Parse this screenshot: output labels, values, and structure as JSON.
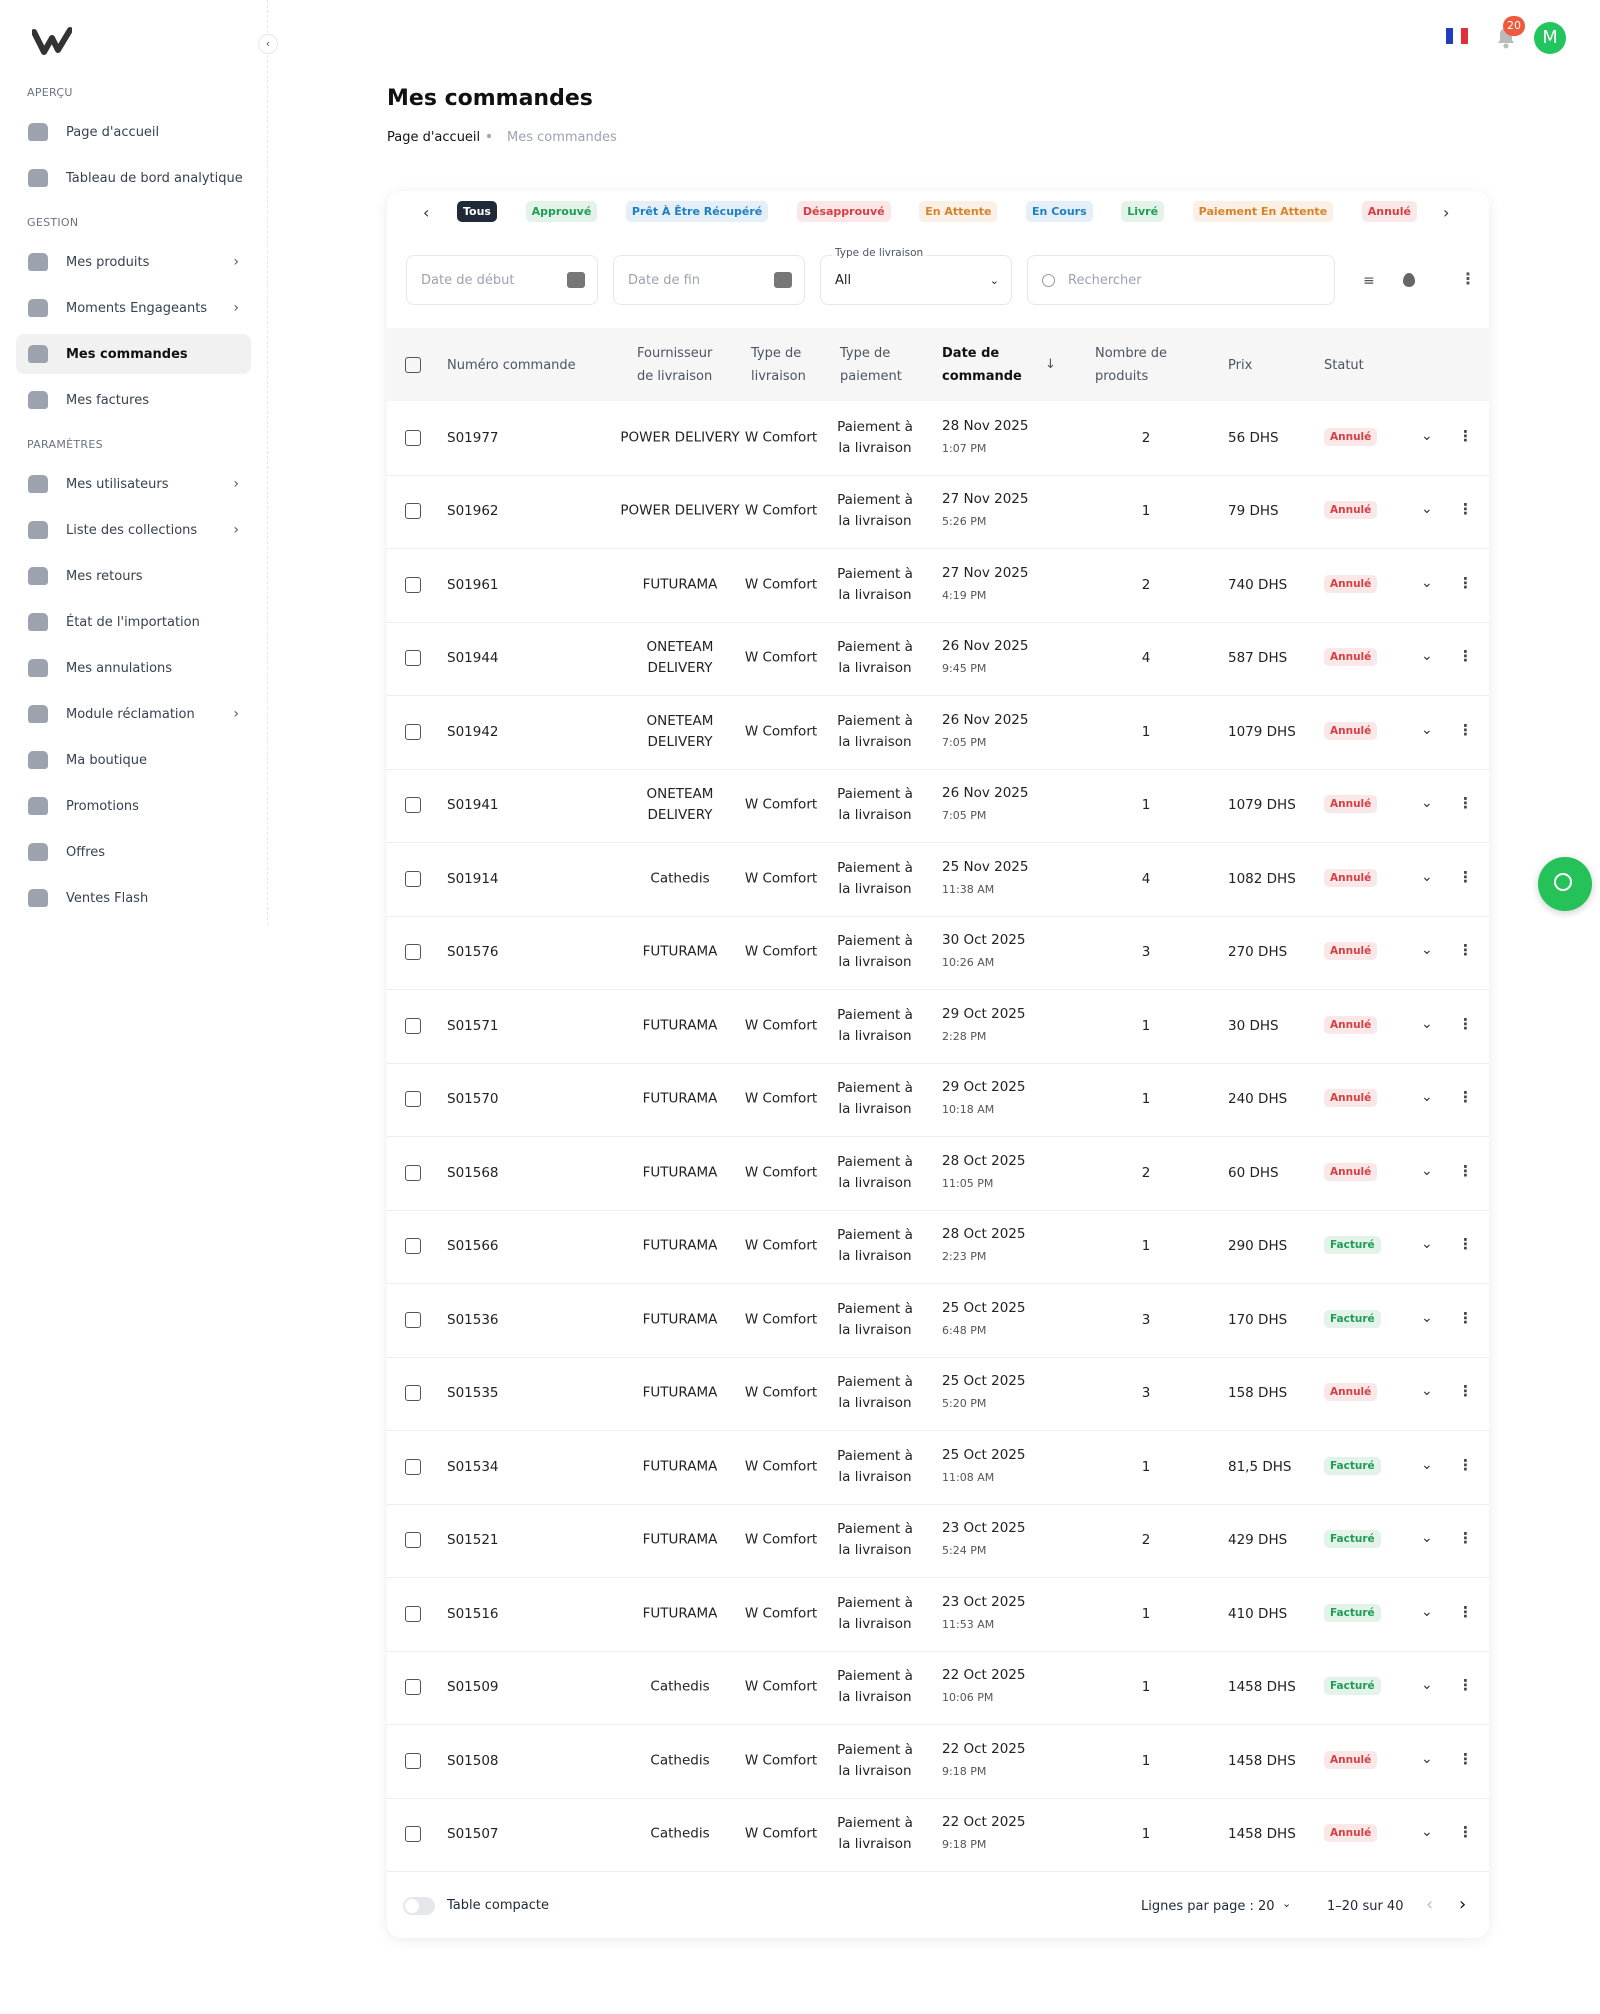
{
  "sidebar": {
    "sections": [
      {
        "label": "APERÇU",
        "items": [
          {
            "label": "Page d'accueil"
          },
          {
            "label": "Tableau de bord analytique"
          }
        ]
      },
      {
        "label": "GESTION",
        "items": [
          {
            "label": "Mes produits",
            "expandable": true
          },
          {
            "label": "Moments Engageants",
            "expandable": true
          },
          {
            "label": "Mes commandes",
            "active": true
          },
          {
            "label": "Mes factures"
          }
        ]
      },
      {
        "label": "PARAMÈTRES",
        "items": [
          {
            "label": "Mes utilisateurs",
            "expandable": true
          },
          {
            "label": "Liste des collections",
            "expandable": true
          },
          {
            "label": "Mes retours"
          },
          {
            "label": "État de l'importation"
          },
          {
            "label": "Mes annulations"
          },
          {
            "label": "Module réclamation",
            "expandable": true
          },
          {
            "label": "Ma boutique"
          },
          {
            "label": "Promotions"
          },
          {
            "label": "Offres"
          },
          {
            "label": "Ventes Flash"
          }
        ]
      }
    ]
  },
  "header": {
    "notifications": "20",
    "avatar": "M"
  },
  "page": {
    "title": "Mes commandes",
    "breadcrumb": [
      "Page d'accueil",
      "Mes commandes"
    ]
  },
  "tabs": [
    {
      "label": "Tous",
      "color": "#ffffff",
      "active": true
    },
    {
      "label": "Approuvé",
      "color": "#1f9d55"
    },
    {
      "label": "Prêt À Être Récupéré",
      "color": "#1d7fc4"
    },
    {
      "label": "Désapprouvé",
      "color": "#d64045"
    },
    {
      "label": "En Attente",
      "color": "#d9822b"
    },
    {
      "label": "En Cours",
      "color": "#1d7fc4"
    },
    {
      "label": "Livré",
      "color": "#1f9d55"
    },
    {
      "label": "Paiement En Attente",
      "color": "#d9822b"
    },
    {
      "label": "Annulé",
      "color": "#d64045"
    }
  ],
  "filters": {
    "start_date": "Date de début",
    "end_date": "Date de fin",
    "delivery_type_label": "Type de livraison",
    "delivery_type_value": "All",
    "search": "Rechercher"
  },
  "table": {
    "columns": [
      "Numéro commande",
      "Fournisseur de livraison",
      "Type de livraison",
      "Type de paiement",
      "Date de commande",
      "Nombre de produits",
      "Prix",
      "Statut"
    ],
    "rows": [
      [
        "S01977",
        "POWER DELIVERY",
        "W Comfort",
        "Paiement à la livraison",
        "28 Nov 2025",
        "1:07 PM",
        2,
        "56 DHS",
        "Annulé"
      ],
      [
        "S01962",
        "POWER DELIVERY",
        "W Comfort",
        "Paiement à la livraison",
        "27 Nov 2025",
        "5:26 PM",
        1,
        "79 DHS",
        "Annulé"
      ],
      [
        "S01961",
        "FUTURAMA",
        "W Comfort",
        "Paiement à la livraison",
        "27 Nov 2025",
        "4:19 PM",
        2,
        "740 DHS",
        "Annulé"
      ],
      [
        "S01944",
        "ONETEAM DELIVERY",
        "W Comfort",
        "Paiement à la livraison",
        "26 Nov 2025",
        "9:45 PM",
        4,
        "587 DHS",
        "Annulé"
      ],
      [
        "S01942",
        "ONETEAM DELIVERY",
        "W Comfort",
        "Paiement à la livraison",
        "26 Nov 2025",
        "7:05 PM",
        1,
        "1079 DHS",
        "Annulé"
      ],
      [
        "S01941",
        "ONETEAM DELIVERY",
        "W Comfort",
        "Paiement à la livraison",
        "26 Nov 2025",
        "7:05 PM",
        1,
        "1079 DHS",
        "Annulé"
      ],
      [
        "S01914",
        "Cathedis",
        "W Comfort",
        "Paiement à la livraison",
        "25 Nov 2025",
        "11:38 AM",
        4,
        "1082 DHS",
        "Annulé"
      ],
      [
        "S01576",
        "FUTURAMA",
        "W Comfort",
        "Paiement à la livraison",
        "30 Oct 2025",
        "10:26 AM",
        3,
        "270 DHS",
        "Annulé"
      ],
      [
        "S01571",
        "FUTURAMA",
        "W Comfort",
        "Paiement à la livraison",
        "29 Oct 2025",
        "2:28 PM",
        1,
        "30 DHS",
        "Annulé"
      ],
      [
        "S01570",
        "FUTURAMA",
        "W Comfort",
        "Paiement à la livraison",
        "29 Oct 2025",
        "10:18 AM",
        1,
        "240 DHS",
        "Annulé"
      ],
      [
        "S01568",
        "FUTURAMA",
        "W Comfort",
        "Paiement à la livraison",
        "28 Oct 2025",
        "11:05 PM",
        2,
        "60 DHS",
        "Annulé"
      ],
      [
        "S01566",
        "FUTURAMA",
        "W Comfort",
        "Paiement à la livraison",
        "28 Oct 2025",
        "2:23 PM",
        1,
        "290 DHS",
        "Facturé"
      ],
      [
        "S01536",
        "FUTURAMA",
        "W Comfort",
        "Paiement à la livraison",
        "25 Oct 2025",
        "6:48 PM",
        3,
        "170 DHS",
        "Facturé"
      ],
      [
        "S01535",
        "FUTURAMA",
        "W Comfort",
        "Paiement à la livraison",
        "25 Oct 2025",
        "5:20 PM",
        3,
        "158 DHS",
        "Annulé"
      ],
      [
        "S01534",
        "FUTURAMA",
        "W Comfort",
        "Paiement à la livraison",
        "25 Oct 2025",
        "11:08 AM",
        1,
        "81,5 DHS",
        "Facturé"
      ],
      [
        "S01521",
        "FUTURAMA",
        "W Comfort",
        "Paiement à la livraison",
        "23 Oct 2025",
        "5:24 PM",
        2,
        "429 DHS",
        "Facturé"
      ],
      [
        "S01516",
        "FUTURAMA",
        "W Comfort",
        "Paiement à la livraison",
        "23 Oct 2025",
        "11:53 AM",
        1,
        "410 DHS",
        "Facturé"
      ],
      [
        "S01509",
        "Cathedis",
        "W Comfort",
        "Paiement à la livraison",
        "22 Oct 2025",
        "10:06 PM",
        1,
        "1458 DHS",
        "Facturé"
      ],
      [
        "S01508",
        "Cathedis",
        "W Comfort",
        "Paiement à la livraison",
        "22 Oct 2025",
        "9:18 PM",
        1,
        "1458 DHS",
        "Annulé"
      ],
      [
        "S01507",
        "Cathedis",
        "W Comfort",
        "Paiement à la livraison",
        "22 Oct 2025",
        "9:18 PM",
        1,
        "1458 DHS",
        "Annulé"
      ]
    ],
    "status_colors": [
      "#d64045",
      "#1f9d55"
    ]
  },
  "footer": {
    "compact": "Table compacte",
    "rows_per_page_label": "Lignes par page :",
    "rows_per_page": "20",
    "range": "1–20 sur 40"
  }
}
